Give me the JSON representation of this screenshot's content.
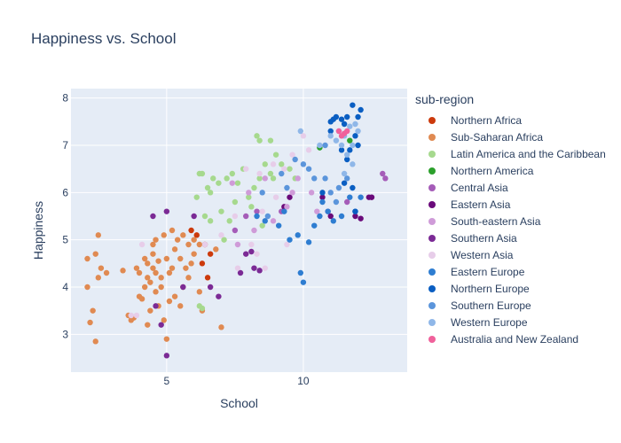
{
  "chart_data": {
    "type": "scatter",
    "title": "Happiness vs. School",
    "xlabel": "School",
    "ylabel": "Happiness",
    "xlim": [
      1.5,
      13.8
    ],
    "ylim": [
      2.2,
      8.2
    ],
    "xticks": [
      5,
      10
    ],
    "yticks": [
      3,
      4,
      5,
      6,
      7,
      8
    ],
    "grid": true,
    "legend_title": "sub-region",
    "legend_position": "right",
    "series": [
      {
        "name": "Northern Africa",
        "color": "#cc3a0c",
        "points": [
          [
            5.9,
            5.2
          ],
          [
            6.4,
            4.9
          ],
          [
            6.3,
            4.5
          ],
          [
            6.5,
            4.2
          ],
          [
            6.6,
            4.7
          ],
          [
            6.1,
            5.1
          ]
        ]
      },
      {
        "name": "Sub-Saharan Africa",
        "color": "#e08a52",
        "points": [
          [
            2.1,
            4.6
          ],
          [
            2.4,
            4.7
          ],
          [
            2.5,
            5.1
          ],
          [
            2.6,
            4.4
          ],
          [
            2.5,
            4.2
          ],
          [
            2.1,
            4.0
          ],
          [
            2.3,
            3.5
          ],
          [
            2.2,
            3.25
          ],
          [
            2.4,
            2.85
          ],
          [
            2.8,
            4.3
          ],
          [
            3.4,
            4.35
          ],
          [
            3.6,
            3.4
          ],
          [
            3.8,
            3.35
          ],
          [
            3.9,
            4.4
          ],
          [
            4.0,
            3.8
          ],
          [
            4.1,
            3.75
          ],
          [
            4.2,
            4.6
          ],
          [
            4.3,
            4.5
          ],
          [
            4.3,
            4.2
          ],
          [
            4.4,
            4.1
          ],
          [
            4.5,
            4.4
          ],
          [
            4.5,
            4.9
          ],
          [
            4.6,
            5.0
          ],
          [
            4.6,
            4.3
          ],
          [
            4.7,
            4.55
          ],
          [
            4.8,
            4.2
          ],
          [
            4.9,
            5.1
          ],
          [
            5.0,
            4.6
          ],
          [
            5.1,
            4.3
          ],
          [
            5.2,
            5.2
          ],
          [
            5.3,
            4.8
          ],
          [
            5.4,
            5.0
          ],
          [
            5.5,
            4.6
          ],
          [
            5.6,
            5.1
          ],
          [
            5.7,
            4.4
          ],
          [
            5.8,
            4.9
          ],
          [
            5.9,
            4.5
          ],
          [
            6.0,
            4.7
          ],
          [
            4.4,
            3.5
          ],
          [
            4.6,
            3.9
          ],
          [
            4.9,
            3.3
          ],
          [
            5.0,
            2.9
          ],
          [
            5.1,
            3.7
          ],
          [
            5.3,
            3.8
          ],
          [
            5.5,
            3.6
          ],
          [
            4.7,
            3.6
          ],
          [
            6.2,
            3.9
          ],
          [
            6.3,
            3.5
          ],
          [
            6.8,
            4.8
          ],
          [
            7.0,
            3.15
          ],
          [
            4.2,
            4.0
          ],
          [
            4.0,
            4.3
          ],
          [
            4.5,
            4.7
          ],
          [
            4.8,
            4.0
          ],
          [
            5.2,
            4.4
          ],
          [
            5.6,
            4.0
          ],
          [
            3.7,
            3.3
          ],
          [
            4.3,
            3.2
          ],
          [
            5.8,
            4.2
          ],
          [
            6.0,
            5.0
          ],
          [
            6.2,
            4.9
          ]
        ]
      },
      {
        "name": "Latin America and the Caribbean",
        "color": "#a6d98e",
        "points": [
          [
            6.1,
            5.9
          ],
          [
            6.2,
            6.4
          ],
          [
            6.3,
            6.4
          ],
          [
            6.5,
            6.1
          ],
          [
            6.6,
            6.0
          ],
          [
            6.7,
            6.3
          ],
          [
            6.9,
            6.2
          ],
          [
            7.0,
            5.6
          ],
          [
            7.2,
            6.3
          ],
          [
            7.4,
            6.4
          ],
          [
            7.6,
            6.2
          ],
          [
            7.8,
            6.5
          ],
          [
            8.0,
            5.9
          ],
          [
            8.2,
            6.1
          ],
          [
            8.4,
            6.3
          ],
          [
            8.6,
            6.6
          ],
          [
            8.8,
            6.4
          ],
          [
            9.0,
            6.8
          ],
          [
            9.2,
            6.6
          ],
          [
            9.5,
            6.5
          ],
          [
            8.3,
            7.2
          ],
          [
            8.4,
            7.1
          ],
          [
            8.8,
            7.1
          ],
          [
            7.1,
            5.0
          ],
          [
            7.5,
            5.8
          ],
          [
            8.1,
            5.7
          ],
          [
            8.5,
            5.3
          ],
          [
            9.7,
            6.3
          ],
          [
            6.4,
            5.5
          ],
          [
            6.6,
            5.4
          ],
          [
            6.2,
            3.6
          ],
          [
            6.3,
            3.55
          ],
          [
            7.3,
            5.4
          ],
          [
            8.9,
            6.3
          ]
        ]
      },
      {
        "name": "Northern America",
        "color": "#2ca02c",
        "points": [
          [
            10.6,
            6.95
          ],
          [
            11.7,
            7.1
          ]
        ]
      },
      {
        "name": "Central Asia",
        "color": "#a55cb8",
        "points": [
          [
            12.9,
            6.4
          ],
          [
            13.0,
            6.3
          ],
          [
            12.5,
            5.9
          ],
          [
            11.6,
            5.8
          ],
          [
            10.9,
            5.6
          ],
          [
            9.2,
            5.6
          ],
          [
            8.3,
            5.6
          ],
          [
            7.5,
            5.2
          ],
          [
            7.9,
            5.5
          ]
        ]
      },
      {
        "name": "Eastern Asia",
        "color": "#6a0a7a",
        "points": [
          [
            12.4,
            5.9
          ],
          [
            12.1,
            5.45
          ],
          [
            11.9,
            5.5
          ],
          [
            11.0,
            5.5
          ],
          [
            10.7,
            5.9
          ],
          [
            9.3,
            5.7
          ],
          [
            9.5,
            5.9
          ],
          [
            12.5,
            5.9
          ]
        ]
      },
      {
        "name": "South-eastern Asia",
        "color": "#cf9bd8",
        "points": [
          [
            8.2,
            5.2
          ],
          [
            8.9,
            5.4
          ],
          [
            9.4,
            5.7
          ],
          [
            9.8,
            6.3
          ],
          [
            10.3,
            6.0
          ],
          [
            7.6,
            4.9
          ],
          [
            8.0,
            6.0
          ],
          [
            7.4,
            6.2
          ],
          [
            9.6,
            6.0
          ],
          [
            10.5,
            5.6
          ],
          [
            8.6,
            6.3
          ]
        ]
      },
      {
        "name": "Southern Asia",
        "color": "#7b2a95",
        "points": [
          [
            4.6,
            3.6
          ],
          [
            4.8,
            3.2
          ],
          [
            5.0,
            2.55
          ],
          [
            4.5,
            5.5
          ],
          [
            5.0,
            5.6
          ],
          [
            5.6,
            4.0
          ],
          [
            6.0,
            5.5
          ],
          [
            6.6,
            4.0
          ],
          [
            6.9,
            3.8
          ],
          [
            7.7,
            4.3
          ],
          [
            8.2,
            4.4
          ],
          [
            8.4,
            4.35
          ],
          [
            7.9,
            4.7
          ],
          [
            8.1,
            4.75
          ]
        ]
      },
      {
        "name": "Western Asia",
        "color": "#e7cde9",
        "points": [
          [
            7.9,
            6.5
          ],
          [
            8.4,
            6.4
          ],
          [
            8.9,
            6.6
          ],
          [
            9.3,
            6.5
          ],
          [
            9.6,
            6.8
          ],
          [
            10.0,
            7.2
          ],
          [
            10.2,
            6.9
          ],
          [
            9.0,
            5.9
          ],
          [
            8.5,
            5.6
          ],
          [
            7.5,
            5.5
          ],
          [
            7.0,
            5.1
          ],
          [
            6.4,
            4.9
          ],
          [
            7.6,
            4.4
          ],
          [
            8.3,
            4.7
          ],
          [
            8.6,
            4.4
          ],
          [
            9.4,
            4.9
          ],
          [
            3.9,
            3.4
          ],
          [
            3.7,
            3.4
          ],
          [
            4.1,
            4.9
          ],
          [
            8.1,
            4.9
          ]
        ]
      },
      {
        "name": "Eastern Europe",
        "color": "#2e7dd1",
        "points": [
          [
            9.9,
            4.3
          ],
          [
            10.0,
            4.1
          ],
          [
            10.2,
            4.95
          ],
          [
            9.8,
            5.1
          ],
          [
            10.4,
            5.3
          ],
          [
            10.6,
            5.5
          ],
          [
            10.9,
            5.6
          ],
          [
            11.1,
            5.4
          ],
          [
            10.7,
            5.8
          ],
          [
            11.4,
            5.5
          ],
          [
            11.7,
            5.9
          ],
          [
            11.9,
            5.6
          ],
          [
            12.1,
            5.9
          ],
          [
            9.1,
            5.3
          ],
          [
            9.3,
            5.6
          ],
          [
            8.6,
            5.4
          ],
          [
            8.3,
            5.5
          ],
          [
            9.5,
            5.0
          ]
        ]
      },
      {
        "name": "Northern Europe",
        "color": "#0a5ec2",
        "points": [
          [
            11.0,
            7.5
          ],
          [
            11.1,
            7.55
          ],
          [
            11.2,
            7.6
          ],
          [
            11.4,
            7.55
          ],
          [
            11.5,
            7.45
          ],
          [
            11.6,
            7.6
          ],
          [
            11.8,
            7.85
          ],
          [
            12.0,
            7.6
          ],
          [
            12.1,
            7.75
          ],
          [
            11.9,
            7.2
          ],
          [
            11.7,
            6.9
          ],
          [
            11.4,
            6.9
          ],
          [
            11.6,
            6.7
          ],
          [
            11.0,
            7.3
          ],
          [
            12.0,
            7.0
          ],
          [
            11.5,
            6.2
          ],
          [
            11.8,
            6.1
          ],
          [
            10.7,
            6.0
          ],
          [
            11.9,
            5.6
          ]
        ]
      },
      {
        "name": "Southern Europe",
        "color": "#5b95db",
        "points": [
          [
            8.5,
            6.0
          ],
          [
            9.2,
            6.4
          ],
          [
            9.7,
            6.7
          ],
          [
            10.0,
            6.6
          ],
          [
            10.4,
            6.3
          ],
          [
            10.8,
            6.3
          ],
          [
            11.0,
            6.0
          ],
          [
            11.3,
            6.1
          ],
          [
            11.6,
            6.3
          ],
          [
            9.4,
            6.1
          ],
          [
            8.7,
            5.5
          ],
          [
            10.2,
            6.5
          ],
          [
            11.2,
            5.8
          ],
          [
            10.8,
            7.0
          ]
        ]
      },
      {
        "name": "Western Europe",
        "color": "#8fb7e8",
        "points": [
          [
            11.0,
            7.2
          ],
          [
            11.3,
            7.3
          ],
          [
            11.5,
            7.2
          ],
          [
            11.6,
            6.8
          ],
          [
            11.4,
            7.0
          ],
          [
            11.7,
            7.4
          ],
          [
            11.8,
            7.0
          ],
          [
            11.9,
            7.45
          ],
          [
            12.0,
            7.3
          ],
          [
            11.2,
            7.1
          ],
          [
            11.5,
            6.4
          ],
          [
            11.8,
            6.6
          ],
          [
            9.9,
            7.3
          ],
          [
            10.6,
            7.0
          ]
        ]
      },
      {
        "name": "Australia and New Zealand",
        "color": "#f0619b",
        "points": [
          [
            11.3,
            7.3
          ],
          [
            11.5,
            7.25
          ],
          [
            11.4,
            7.2
          ],
          [
            11.6,
            7.3
          ]
        ]
      }
    ]
  }
}
